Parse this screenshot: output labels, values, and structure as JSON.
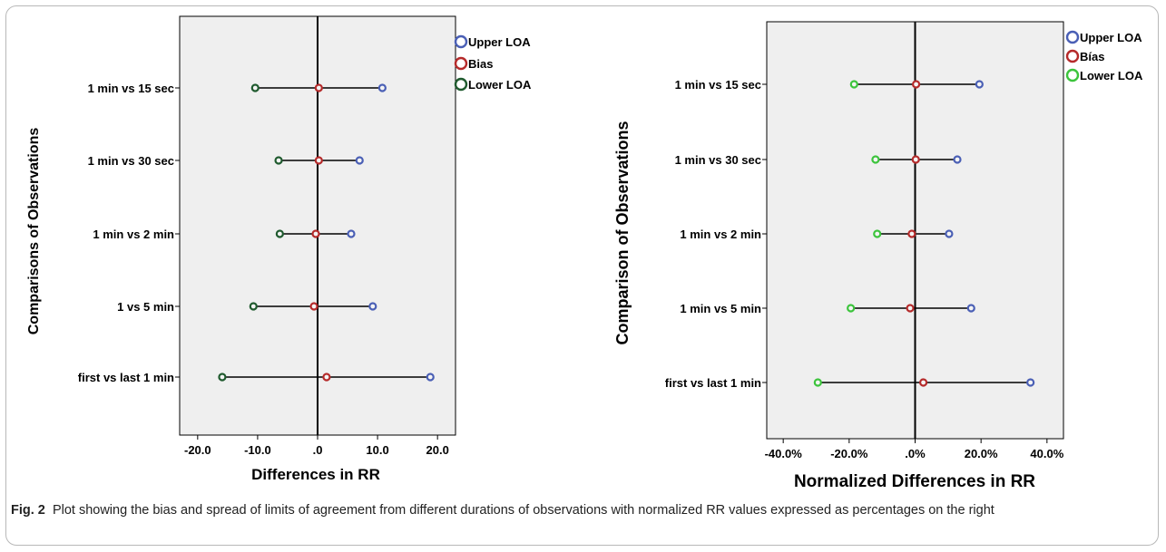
{
  "colors": {
    "upper": "#4a5fb5",
    "bias": "#b52a2a",
    "lower_left": "#1f5a2e",
    "lower_right": "#3cc43c",
    "panel_bg": "#efefef"
  },
  "caption": {
    "label": "Fig. 2",
    "text": "Plot showing the bias and spread of limits of agreement from different durations of observations with normalized RR values expressed as percentages on the right"
  },
  "chart_data": [
    {
      "type": "scatter",
      "title": "",
      "xlabel": "Differences in RR",
      "ylabel": "Comparisons of Observations",
      "xlim": [
        -23,
        23
      ],
      "xticks": [
        -20,
        -10,
        0,
        10,
        20
      ],
      "xtick_labels": [
        "-20.0",
        "-10.0",
        ".0",
        "10.0",
        "20.0"
      ],
      "grid": false,
      "legend_position": "top-right-outside",
      "categories": [
        "1 min vs 15 sec",
        "1 min vs 30 sec",
        "1 min vs 2 min",
        "1 vs 5 min",
        "first vs last 1 min"
      ],
      "series": [
        {
          "name": "Upper LOA",
          "values": [
            10.8,
            7.0,
            5.6,
            9.2,
            18.8
          ]
        },
        {
          "name": "Bias",
          "values": [
            0.2,
            0.2,
            -0.3,
            -0.6,
            1.5
          ]
        },
        {
          "name": "Lower LOA",
          "values": [
            -10.4,
            -6.5,
            -6.3,
            -10.7,
            -15.9
          ]
        }
      ]
    },
    {
      "type": "scatter",
      "title": "",
      "xlabel": "Normalized Differences in RR",
      "ylabel": "Comparison of Observations",
      "xlim": [
        -45,
        45
      ],
      "xticks": [
        -40,
        -20,
        0,
        20,
        40
      ],
      "xtick_labels": [
        "-40.0%",
        "-20.0%",
        ".0%",
        "20.0%",
        "40.0%"
      ],
      "grid": false,
      "legend_position": "top-right-outside",
      "categories": [
        "1 min vs 15 sec",
        "1 min vs 30 sec",
        "1 min vs 2 min",
        "1 min vs 5 min",
        "first vs last 1 min"
      ],
      "series": [
        {
          "name": "Upper LOA",
          "values": [
            19.5,
            12.8,
            10.3,
            17.0,
            35.0
          ]
        },
        {
          "name": "Bías",
          "values": [
            0.3,
            0.2,
            -1.0,
            -1.5,
            2.5
          ]
        },
        {
          "name": "Lower LOA",
          "values": [
            -18.5,
            -12.0,
            -11.5,
            -19.5,
            -29.5
          ]
        }
      ]
    }
  ]
}
